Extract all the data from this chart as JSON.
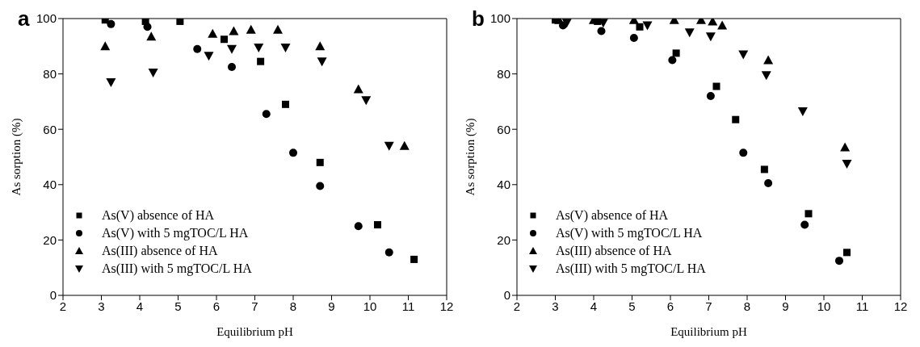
{
  "chart_data": [
    {
      "type": "scatter",
      "title": "a",
      "xlabel": "Equilibrium pH",
      "ylabel": "As sorption (%)",
      "xlim": [
        2,
        12
      ],
      "xticks": [
        2,
        3,
        4,
        5,
        6,
        7,
        8,
        9,
        10,
        11,
        12
      ],
      "ylim": [
        0,
        100
      ],
      "yticks": [
        0,
        20,
        40,
        60,
        80,
        100
      ],
      "legend": "bottom left",
      "series": [
        {
          "name": "As(V) absence of HA",
          "color": "#000000",
          "marker": "square",
          "x": [
            3.1,
            4.15,
            5.05,
            6.2,
            7.15,
            7.8,
            8.7,
            10.2,
            11.15
          ],
          "values": [
            99.5,
            99,
            99,
            92.5,
            84.5,
            69,
            48,
            25.5,
            13
          ]
        },
        {
          "name": "As(V) with 5 mgTOC/L HA",
          "color": "#000000",
          "marker": "circle",
          "x": [
            3.25,
            4.2,
            5.5,
            6.4,
            7.3,
            8.0,
            8.7,
            9.7,
            10.5
          ],
          "values": [
            98,
            97,
            89,
            82.5,
            65.5,
            51.5,
            39.5,
            25,
            15.5
          ]
        },
        {
          "name": "As(III) absence of HA",
          "color": "#000000",
          "marker": "triangle",
          "x": [
            3.1,
            4.3,
            5.9,
            6.45,
            6.9,
            7.6,
            8.7,
            9.7,
            10.9
          ],
          "values": [
            90,
            93.5,
            94.5,
            95.5,
            96,
            96,
            90,
            74.5,
            54
          ]
        },
        {
          "name": "As(III) with 5 mgTOC/L HA",
          "color": "#000000",
          "marker": "triangle-down",
          "x": [
            3.25,
            4.35,
            5.8,
            6.4,
            7.1,
            7.8,
            8.75,
            9.9,
            10.5
          ],
          "values": [
            77,
            80.5,
            86.5,
            89,
            89.5,
            89.5,
            84.5,
            70.5,
            54
          ]
        }
      ]
    },
    {
      "type": "scatter",
      "title": "b",
      "xlabel": "Equilibrium pH",
      "ylabel": "As sorption (%)",
      "xlim": [
        2,
        12
      ],
      "xticks": [
        2,
        3,
        4,
        5,
        6,
        7,
        8,
        9,
        10,
        11,
        12
      ],
      "ylim": [
        0,
        100
      ],
      "yticks": [
        0,
        20,
        40,
        60,
        80,
        100
      ],
      "legend": "bottom left",
      "series": [
        {
          "name": "As(V) absence of HA",
          "color": "#000000",
          "marker": "square",
          "x": [
            3.0,
            4.1,
            5.2,
            6.15,
            7.2,
            7.7,
            8.45,
            9.6,
            10.6
          ],
          "values": [
            99.5,
            99,
            97,
            87.5,
            75.5,
            63.5,
            45.5,
            29.5,
            15.5
          ]
        },
        {
          "name": "As(V) with 5 mgTOC/L HA",
          "color": "#000000",
          "marker": "circle",
          "x": [
            3.2,
            4.2,
            5.05,
            6.05,
            7.05,
            7.9,
            8.55,
            9.5,
            10.4
          ],
          "values": [
            97.5,
            95.5,
            93,
            85,
            72,
            51.5,
            40.5,
            25.5,
            12.5
          ]
        },
        {
          "name": "As(III) absence of HA",
          "color": "#000000",
          "marker": "triangle",
          "x": [
            3.1,
            4.0,
            5.05,
            6.1,
            6.8,
            7.1,
            7.35,
            8.55,
            10.55
          ],
          "values": [
            99.5,
            99.5,
            99.5,
            99.5,
            99.5,
            99,
            97.5,
            85,
            53.5
          ]
        },
        {
          "name": "As(III) with 5 mgTOC/L HA",
          "color": "#000000",
          "marker": "triangle-down",
          "x": [
            3.3,
            4.25,
            5.4,
            6.5,
            7.05,
            7.9,
            8.5,
            9.45,
            10.6
          ],
          "values": [
            98.5,
            98.5,
            97.5,
            95,
            93.5,
            87,
            79.5,
            66.5,
            47.5
          ]
        }
      ]
    }
  ]
}
